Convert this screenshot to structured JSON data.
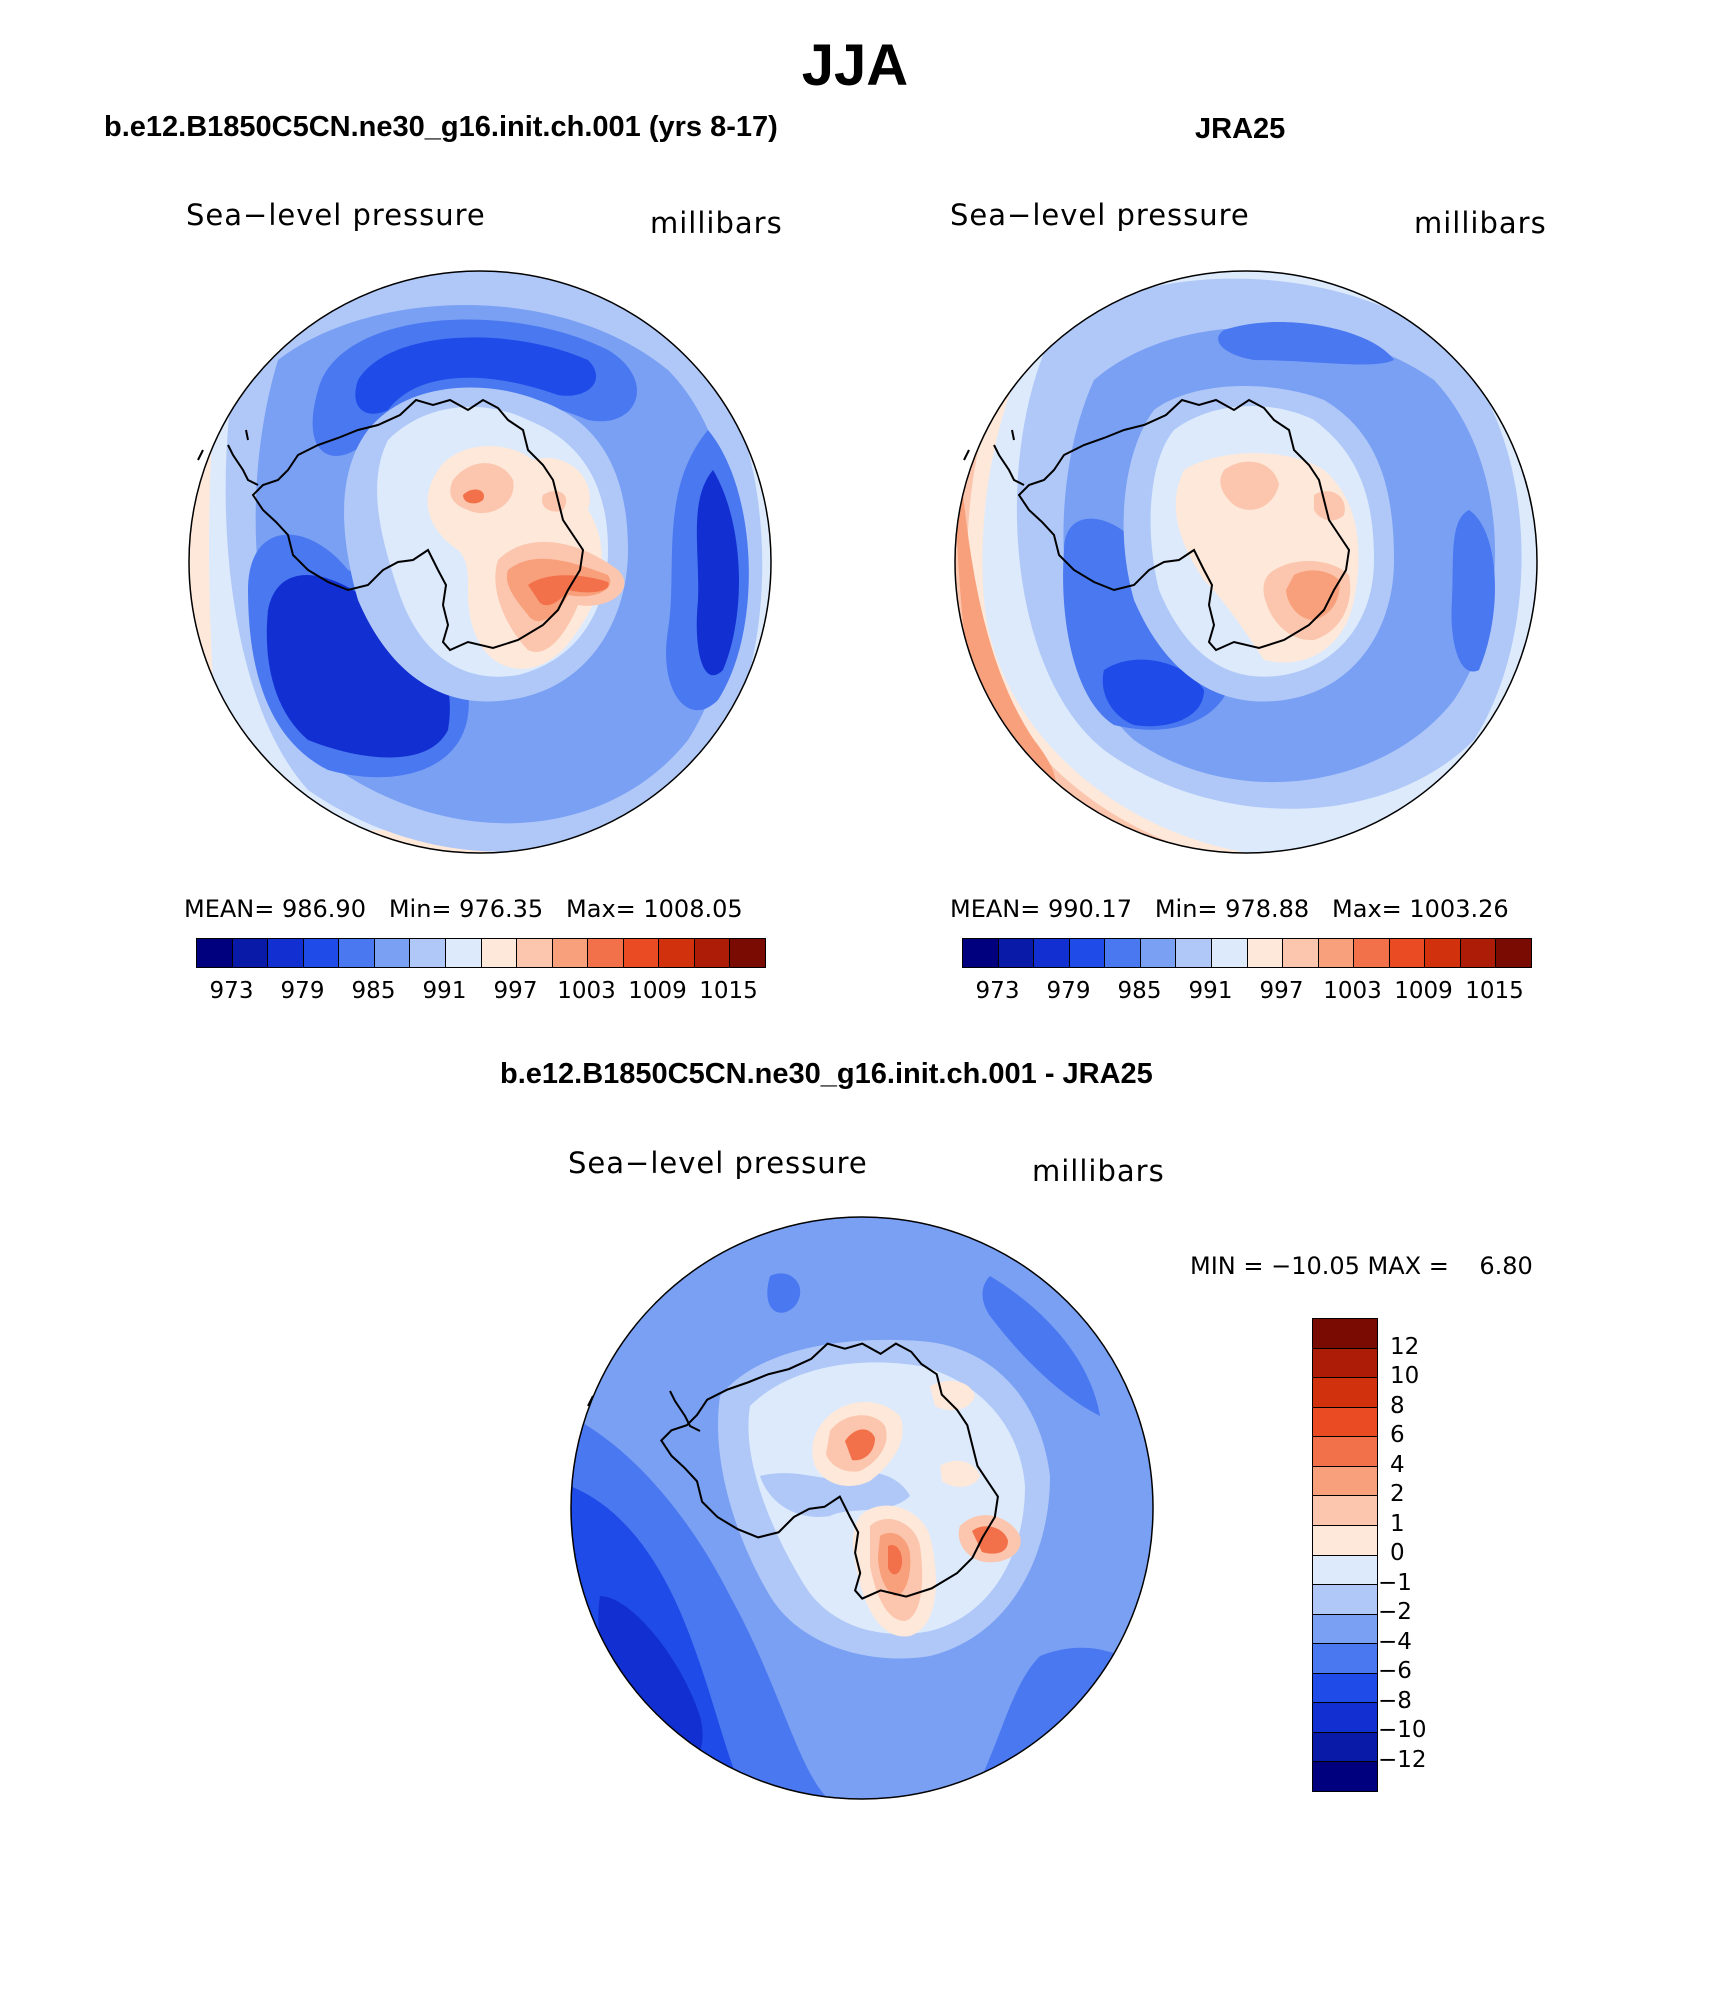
{
  "page": {
    "title": "JJA"
  },
  "panels": {
    "model": {
      "title": "b.e12.B1850C5CN.ne30_g16.init.ch.001 (yrs 8-17)",
      "variable": "Sea−level pressure",
      "units": "millibars",
      "stats": "MEAN= 986.90   Min= 976.35   Max= 1008.05",
      "colorbar_ticks": [
        "973",
        "979",
        "985",
        "991",
        "997",
        "1003",
        "1009",
        "1015"
      ]
    },
    "obs": {
      "title": "JRA25",
      "variable": "Sea−level pressure",
      "units": "millibars",
      "stats": "MEAN= 990.17   Min= 978.88   Max= 1003.26",
      "colorbar_ticks": [
        "973",
        "979",
        "985",
        "991",
        "997",
        "1003",
        "1009",
        "1015"
      ]
    },
    "diff": {
      "title": "b.e12.B1850C5CN.ne30_g16.init.ch.001 - JRA25",
      "variable": "Sea−level pressure",
      "units": "millibars",
      "stats": "MIN = −10.05 MAX =    6.80",
      "colorbar_labels": [
        "12",
        "10",
        "8",
        "6",
        "4",
        "2",
        "1",
        "0",
        "−1",
        "−2",
        "−4",
        "−6",
        "−8",
        "−10",
        "−12"
      ]
    }
  },
  "colors": {
    "abs_palette": [
      "#00007f",
      "#0a1aa8",
      "#1230d2",
      "#1f4be8",
      "#4a78f0",
      "#7aa0f4",
      "#b0c8f8",
      "#dceafc",
      "#fde8da",
      "#fbc6ad",
      "#f8a07c",
      "#f3714a",
      "#ea4b22",
      "#d2310e",
      "#ad1c06",
      "#7a0b03"
    ],
    "diff_palette": [
      "#7a0b03",
      "#ad1c06",
      "#d2310e",
      "#ea4b22",
      "#f3714a",
      "#f8a07c",
      "#fbc6ad",
      "#fde8da",
      "#dceafc",
      "#b0c8f8",
      "#7aa0f4",
      "#4a78f0",
      "#1f4be8",
      "#1230d2",
      "#0a1aa8",
      "#00007f"
    ]
  }
}
